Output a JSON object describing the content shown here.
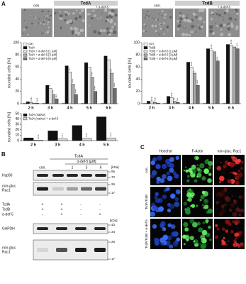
{
  "panel_labels": {
    "a": "A",
    "b": "B",
    "c": "C"
  },
  "micrographs": {
    "left": {
      "control": "con.",
      "group": "TcdA",
      "treated": "+ α-def-5"
    },
    "right": {
      "control": "con.",
      "group": "TcdB",
      "treated": "+ α-def-5"
    }
  },
  "chart_data": [
    {
      "type": "bar",
      "ylabel": "rounded cells [%]",
      "categories": [
        "2 h",
        "3 h",
        "4 h",
        "5 h",
        "6 h"
      ],
      "ylim": [
        0,
        100
      ],
      "yticks": [
        0,
        20,
        40,
        60,
        80,
        100
      ],
      "series": [
        {
          "name": "con.",
          "color": "#ffffff",
          "values": [
            1,
            1,
            1,
            1,
            1
          ]
        },
        {
          "name": "TcdA",
          "color": "#111111",
          "values": [
            3,
            30,
            62,
            67,
            78
          ]
        },
        {
          "name": "TcdA + α-def-5 [1 µM]",
          "color": "#e4e4e4",
          "values": [
            2,
            25,
            52,
            60,
            72
          ],
          "significance": [
            "n.s.",
            "**",
            "***",
            null,
            null
          ]
        },
        {
          "name": "TcdA + α-def-5 [3 µM]",
          "color": "#aaaaaa",
          "values": [
            1,
            15,
            32,
            43,
            50
          ],
          "significance": [
            null,
            "***",
            "****",
            "****",
            "***"
          ]
        },
        {
          "name": "TcdA + α-def-5 [6 µM]",
          "color": "#6e6e6e",
          "values": [
            1,
            8,
            15,
            20,
            25
          ],
          "significance": [
            "n.s.",
            "***",
            "****",
            "****",
            "****"
          ]
        }
      ]
    },
    {
      "type": "bar",
      "ylabel": "rounded cells [%]",
      "categories": [
        "2 h",
        "3 h",
        "4 h",
        "5 h"
      ],
      "ylim": [
        0,
        50
      ],
      "yticks": [
        0,
        10,
        20,
        30,
        40,
        50
      ],
      "series": [
        {
          "name": "TcdA (native)",
          "color": "#111111",
          "values": [
            5,
            18,
            28,
            44
          ]
        },
        {
          "name": "TcdA (native) + α-def-5",
          "color": "#d6d6d6",
          "values": [
            1,
            3,
            4,
            5
          ],
          "significance": [
            "n.s.",
            "****",
            "****",
            "****"
          ]
        }
      ]
    },
    {
      "type": "bar",
      "ylabel": "rounded cells [%]",
      "categories": [
        "2 h",
        "3 h",
        "4 h",
        "5 h",
        "6 h"
      ],
      "ylim": [
        0,
        100
      ],
      "yticks": [
        0,
        20,
        40,
        60,
        80,
        100
      ],
      "series": [
        {
          "name": "con.",
          "color": "#ffffff",
          "values": [
            1,
            1,
            1,
            1,
            1
          ]
        },
        {
          "name": "TcdB",
          "color": "#111111",
          "values": [
            4,
            12,
            68,
            90,
            97
          ]
        },
        {
          "name": "TcdB + α-def-5 [1 µM]",
          "color": "#e4e4e4",
          "values": [
            3,
            10,
            60,
            88,
            96
          ],
          "significance": [
            "n.s.",
            "n.s.",
            "n.s.",
            "n.s.",
            "n.s."
          ]
        },
        {
          "name": "TcdB + α-def-5 [3 µM]",
          "color": "#aaaaaa",
          "values": [
            2,
            4,
            50,
            85,
            93
          ],
          "significance": [
            "n.s.",
            "**",
            "*",
            null,
            null
          ]
        },
        {
          "name": "TcdB + α-def-5 [6 µM]",
          "color": "#6e6e6e",
          "values": [
            1,
            2,
            30,
            70,
            90
          ],
          "significance": [
            null,
            "***",
            "****",
            "***",
            "****"
          ]
        }
      ]
    }
  ],
  "blot_1": {
    "treatment": "TcdA",
    "dose_label": "α-def-5 [µM]",
    "lanes": [
      "con.",
      null,
      "1",
      "3",
      "6"
    ],
    "unit": "[kDa]",
    "rows": [
      [
        "Hsp90"
      ],
      [
        "non-gluc.",
        "Rac1"
      ]
    ],
    "markers": [
      95,
      72,
      26,
      17
    ]
  },
  "blot_2": {
    "conditions": [
      {
        "name": "TcdA",
        "signs": [
          "+",
          "+",
          "-",
          "-"
        ]
      },
      {
        "name": "TcdB",
        "signs": [
          "+",
          "+",
          "-",
          "-"
        ]
      },
      {
        "name": "α-def-5",
        "signs": [
          "-",
          "+",
          "-",
          "+"
        ]
      }
    ],
    "unit": "[kDa]",
    "rows": [
      [
        "GAPDH"
      ],
      [
        "non-gluc.",
        "Rac1"
      ]
    ],
    "markers": [
      43,
      34,
      26,
      17
    ]
  },
  "fluorescence": {
    "columns": [
      "Hoechst",
      "F-Actin",
      "non-gluc. Rac1"
    ],
    "rows": [
      "con.",
      "TcdA/TcdB",
      "TcdA/TcdB + α-def-5"
    ]
  }
}
